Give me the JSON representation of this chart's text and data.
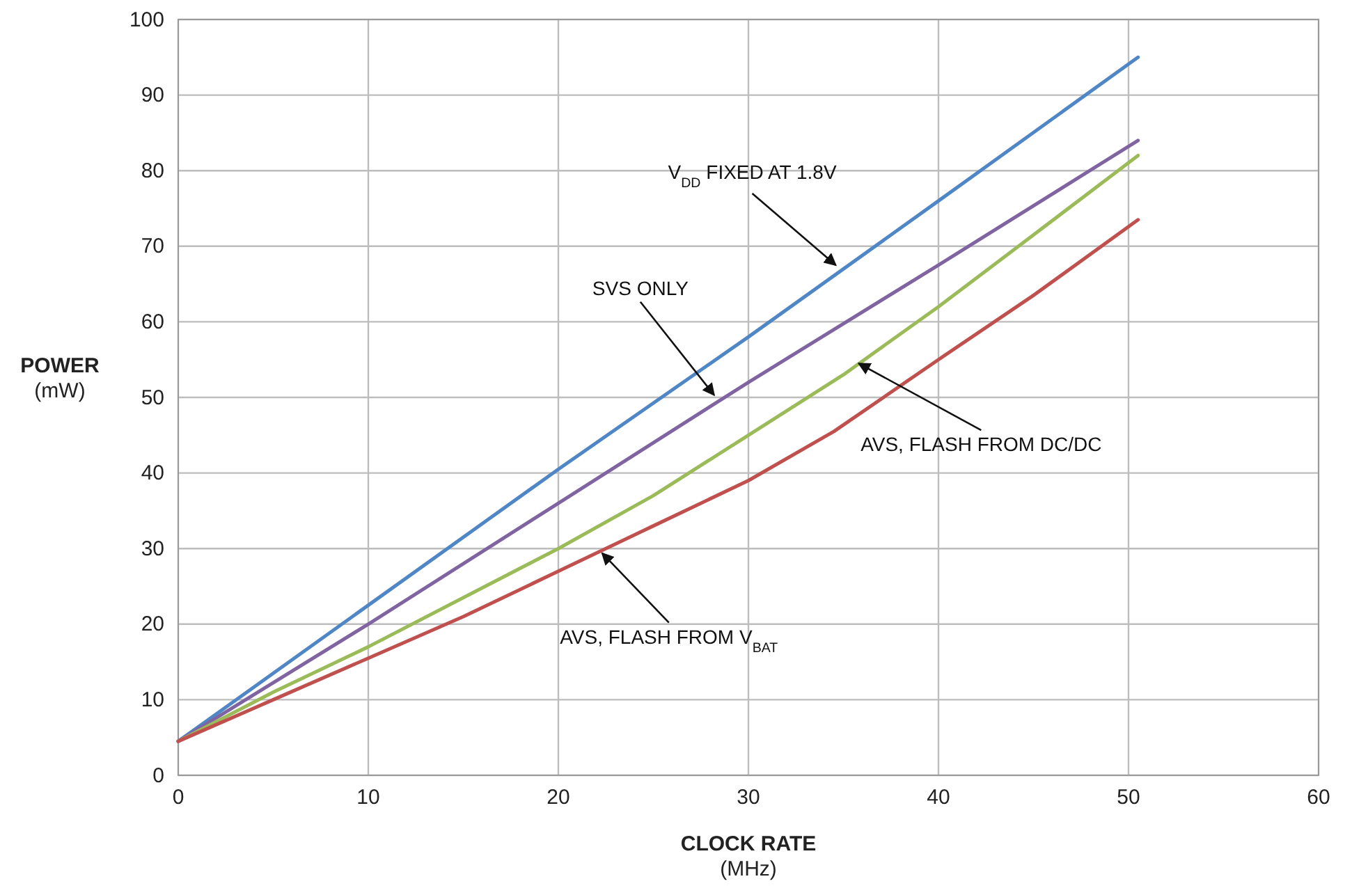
{
  "chart_data": {
    "type": "line",
    "xlabel": "CLOCK RATE (MHz)",
    "ylabel": "POWER (mW)",
    "xlim": [
      0,
      60
    ],
    "xticks": [
      0,
      10,
      20,
      30,
      40,
      50,
      60
    ],
    "ylim": [
      0,
      100
    ],
    "yticks": [
      0,
      10,
      20,
      30,
      40,
      50,
      60,
      70,
      80,
      90,
      100
    ],
    "grid": true,
    "marker": "none",
    "line_style": "solid",
    "series": [
      {
        "color": "#4f86c6",
        "x": [
          0,
          10,
          20,
          30,
          40,
          50.5
        ],
        "values": [
          4.5,
          22.5,
          40.5,
          58,
          76,
          95
        ]
      },
      {
        "color": "#8064a2",
        "x": [
          0,
          10,
          20,
          30,
          40,
          50.5
        ],
        "values": [
          4.5,
          20,
          36,
          52,
          67.5,
          84
        ]
      },
      {
        "color": "#9bbb59",
        "x": [
          0,
          5,
          10,
          15,
          20,
          25,
          30,
          35,
          40,
          45,
          50.5
        ],
        "values": [
          4.5,
          11,
          17,
          23.5,
          30,
          37,
          45,
          53,
          62,
          71.5,
          82
        ]
      },
      {
        "color": "#c0504d",
        "x": [
          0,
          5,
          10,
          15,
          20,
          25,
          30,
          34.5,
          40,
          45,
          50.5
        ],
        "values": [
          4.5,
          10,
          15.5,
          21,
          27,
          33,
          39,
          45.5,
          55,
          63.5,
          73.5
        ]
      }
    ],
    "annotations": [
      {
        "text": "V$_{DD}$ FIXED AT 1.8V",
        "x": 34.6,
        "y": 67.5
      },
      {
        "text": "SVS ONLY",
        "x": 28.2,
        "y": 50.3
      },
      {
        "text": "AVS, FLASH FROM DC/DC",
        "x": 35.8,
        "y": 54.5
      },
      {
        "text": "AVS, FLASH FROM V$_{BAT}$",
        "x": 22.3,
        "y": 29.4
      }
    ]
  }
}
